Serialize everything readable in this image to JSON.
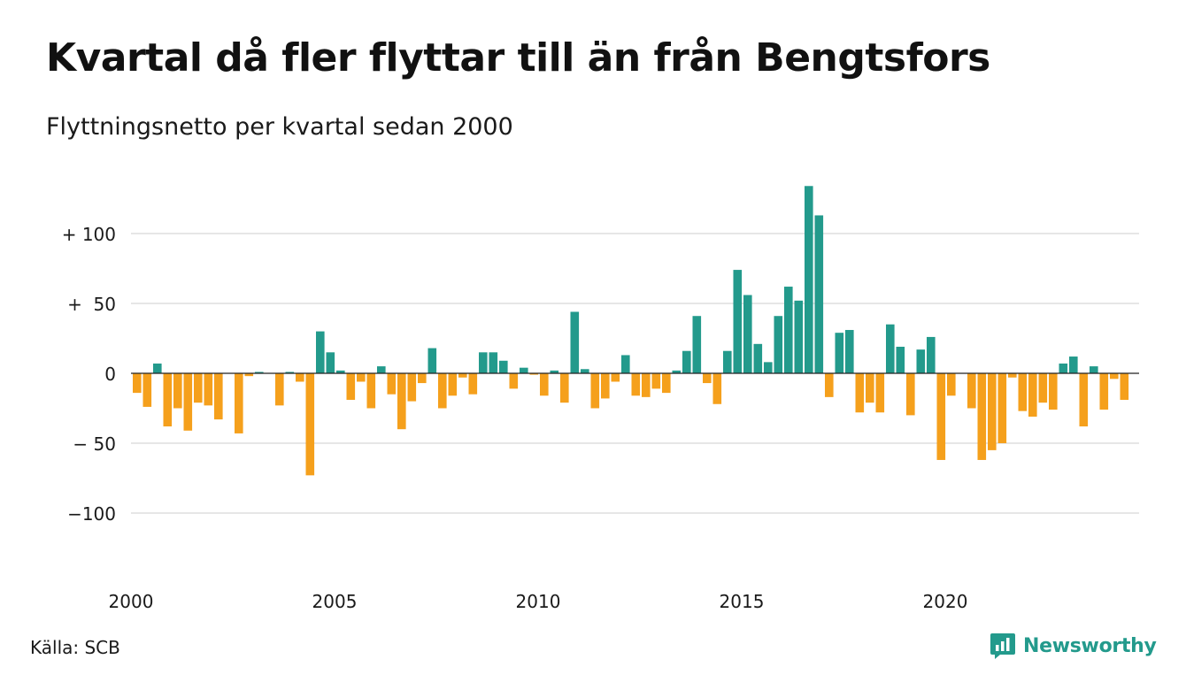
{
  "header": {
    "title": "Kvartal då fler flyttar till än från Bengtsfors",
    "subtitle": "Flyttningsnetto per kvartal sedan 2000"
  },
  "footer": {
    "source": "Källa: SCB",
    "brand": "Newsworthy"
  },
  "colors": {
    "positive": "#239a8c",
    "negative": "#f5a01c",
    "grid": "#dddddd",
    "brand": "#239a8c"
  },
  "chart_data": {
    "type": "bar",
    "title": "Kvartal då fler flyttar till än från Bengtsfors",
    "subtitle": "Flyttningsnetto per kvartal sedan 2000",
    "xlabel": "",
    "ylabel": "",
    "ylim": [
      -130,
      135
    ],
    "yticks": [
      {
        "value": 100,
        "label": "+ 100"
      },
      {
        "value": 50,
        "label": "+  50"
      },
      {
        "value": 0,
        "label": "0"
      },
      {
        "value": -50,
        "label": "− 50"
      },
      {
        "value": -100,
        "label": "−100"
      }
    ],
    "xticks": [
      "2000",
      "2005",
      "2010",
      "2015",
      "2020"
    ],
    "grid": true,
    "legend": "none",
    "start_year": 2000,
    "values": [
      -14,
      -24,
      7,
      -38,
      -25,
      -41,
      -21,
      -23,
      -33,
      0,
      -43,
      -2,
      1,
      0,
      -23,
      1,
      -6,
      -73,
      30,
      15,
      2,
      -19,
      -6,
      -25,
      5,
      -15,
      -40,
      -20,
      -7,
      18,
      -25,
      -16,
      -3,
      -15,
      15,
      15,
      9,
      -11,
      4,
      -1,
      -16,
      2,
      -21,
      44,
      3,
      -25,
      -18,
      -6,
      13,
      -16,
      -17,
      -11,
      -14,
      2,
      16,
      41,
      -7,
      -22,
      16,
      74,
      56,
      21,
      8,
      41,
      62,
      52,
      134,
      113,
      -17,
      29,
      31,
      -28,
      -21,
      -28,
      35,
      19,
      -30,
      17,
      26,
      -62,
      -16,
      0,
      -25,
      -62,
      -55,
      -50,
      -3,
      -27,
      -31,
      -21,
      -26,
      7,
      12,
      -38,
      5,
      -26,
      -4,
      -19
    ]
  }
}
